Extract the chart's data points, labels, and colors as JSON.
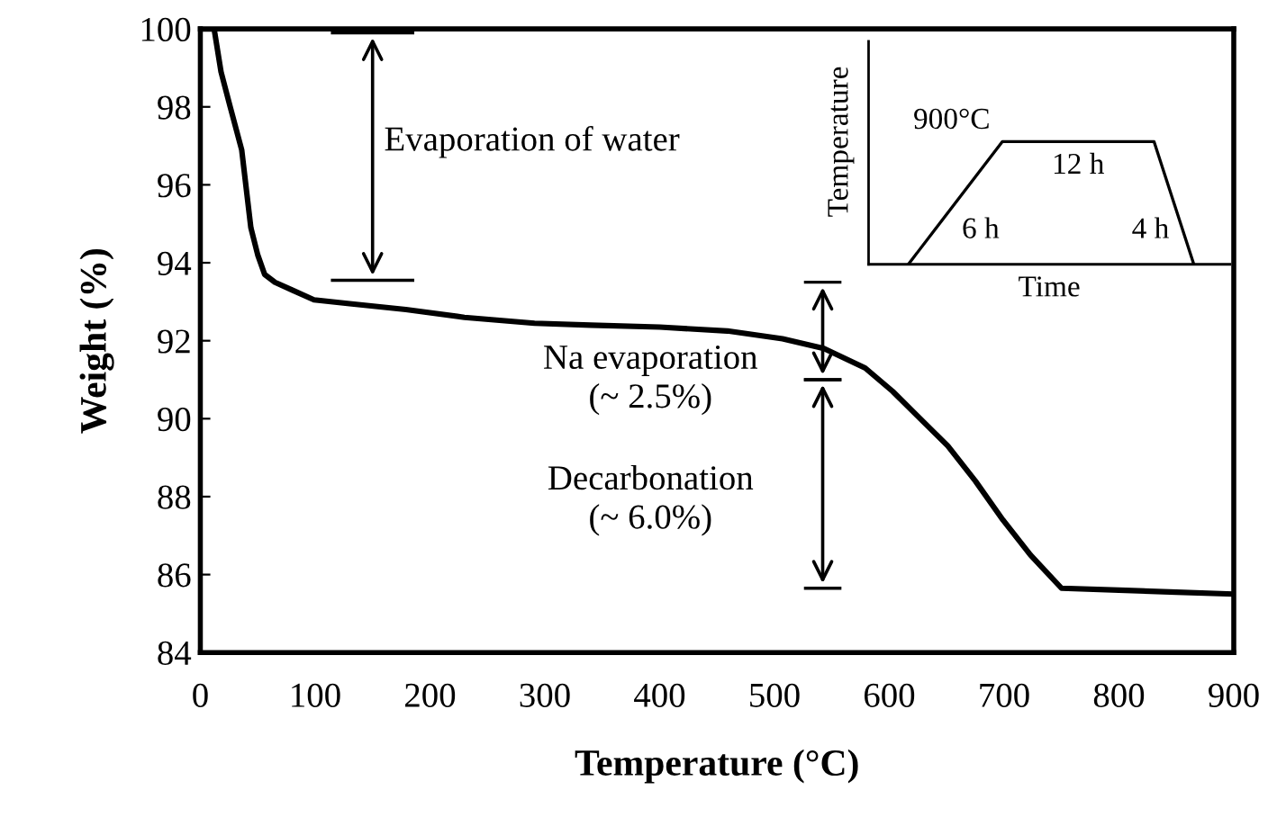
{
  "chart_data": {
    "type": "line",
    "xlabel": "Temperature (°C)",
    "ylabel": "Weight (%)",
    "x": [
      0,
      12,
      18,
      26,
      36,
      44,
      50,
      56,
      65,
      80,
      99,
      130,
      179,
      230,
      291,
      340,
      400,
      459,
      507,
      543,
      579,
      603,
      627,
      651,
      675,
      699,
      723,
      750,
      800,
      850,
      900
    ],
    "series": [
      {
        "color": "#000000",
        "values": [
          100,
          100,
          98.9,
          98.0,
          96.9,
          94.9,
          94.2,
          93.7,
          93.5,
          93.3,
          93.05,
          92.95,
          92.8,
          92.6,
          92.45,
          92.4,
          92.35,
          92.25,
          92.05,
          91.8,
          91.3,
          90.7,
          90.0,
          89.3,
          88.4,
          87.4,
          86.5,
          85.65,
          85.6,
          85.55,
          85.5
        ]
      }
    ],
    "xlim": [
      0,
      900
    ],
    "xticks": [
      0,
      100,
      200,
      300,
      400,
      500,
      600,
      700,
      800,
      900
    ],
    "ylim": [
      84,
      100
    ],
    "yticks": [
      84,
      86,
      88,
      90,
      92,
      94,
      96,
      98,
      100
    ],
    "grid": false,
    "legend": false,
    "marker": "none",
    "line_style": "solid",
    "annotations": [
      "Evaporation of water",
      "Na evaporation\n(~ 2.5%)",
      "Decarbonation\n(~ 6.0%)",
      "Temperature",
      "Time",
      "900°C",
      "12 h",
      "6 h",
      "4 h"
    ]
  }
}
